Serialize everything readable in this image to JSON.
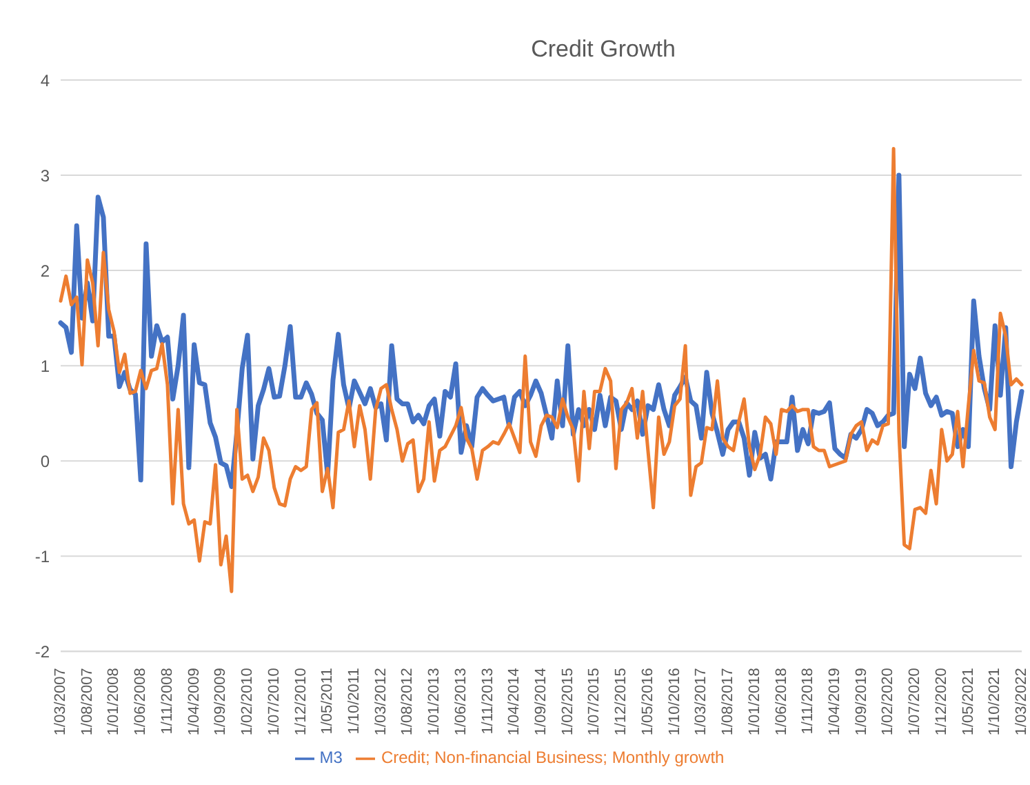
{
  "chart_data": {
    "type": "line",
    "title": "Credit Growth",
    "categories": [
      "1/03/2007",
      null,
      null,
      null,
      null,
      "1/08/2007",
      null,
      null,
      null,
      null,
      "1/01/2008",
      null,
      null,
      null,
      null,
      "1/06/2008",
      null,
      null,
      null,
      null,
      "1/11/2008",
      null,
      null,
      null,
      null,
      "1/04/2009",
      null,
      null,
      null,
      null,
      "1/09/2009",
      null,
      null,
      null,
      null,
      "1/02/2010",
      null,
      null,
      null,
      null,
      "1/07/2010",
      null,
      null,
      null,
      null,
      "1/12/2010",
      null,
      null,
      null,
      null,
      "1/05/2011",
      null,
      null,
      null,
      null,
      "1/10/2011",
      null,
      null,
      null,
      null,
      "1/03/2012",
      null,
      null,
      null,
      null,
      "1/08/2012",
      null,
      null,
      null,
      null,
      "1/01/2013",
      null,
      null,
      null,
      null,
      "1/06/2013",
      null,
      null,
      null,
      null,
      "1/11/2013",
      null,
      null,
      null,
      null,
      "1/04/2014",
      null,
      null,
      null,
      null,
      "1/09/2014",
      null,
      null,
      null,
      null,
      "1/02/2015",
      null,
      null,
      null,
      null,
      "1/07/2015",
      null,
      null,
      null,
      null,
      "1/12/2015",
      null,
      null,
      null,
      null,
      "1/05/2016",
      null,
      null,
      null,
      null,
      "1/10/2016",
      null,
      null,
      null,
      null,
      "1/03/2017",
      null,
      null,
      null,
      null,
      "1/08/2017",
      null,
      null,
      null,
      null,
      "1/01/2018",
      null,
      null,
      null,
      null,
      "1/06/2018",
      null,
      null,
      null,
      null,
      "1/11/2018",
      null,
      null,
      null,
      null,
      "1/04/2019",
      null,
      null,
      null,
      null,
      "1/09/2019",
      null,
      null,
      null,
      null,
      "1/02/2020",
      null,
      null,
      null,
      null,
      "1/07/2020",
      null,
      null,
      null,
      null,
      "1/12/2020",
      null,
      null,
      null,
      null,
      "1/05/2021",
      null,
      null,
      null,
      null,
      "1/10/2021",
      null,
      null,
      null,
      null,
      "1/03/2022"
    ],
    "series": [
      {
        "name": "M3",
        "color": "#4472c4",
        "values": [
          1.45,
          1.4,
          1.14,
          2.47,
          1.5,
          1.87,
          1.47,
          2.77,
          2.56,
          1.31,
          1.31,
          0.78,
          0.93,
          0.75,
          0.7,
          -0.2,
          2.28,
          1.1,
          1.42,
          1.25,
          1.3,
          0.65,
          1.0,
          1.53,
          -0.07,
          1.22,
          0.82,
          0.8,
          0.4,
          0.25,
          -0.02,
          -0.05,
          -0.27,
          0.3,
          0.97,
          1.32,
          0.02,
          0.58,
          0.75,
          0.97,
          0.67,
          0.68,
          1.0,
          1.41,
          0.67,
          0.67,
          0.82,
          0.7,
          0.5,
          0.43,
          -0.15,
          0.85,
          1.33,
          0.8,
          0.55,
          0.84,
          0.72,
          0.6,
          0.76,
          0.56,
          0.6,
          0.22,
          1.21,
          0.65,
          0.6,
          0.6,
          0.41,
          0.48,
          0.39,
          0.58,
          0.65,
          0.26,
          0.73,
          0.67,
          1.02,
          0.09,
          0.37,
          0.15,
          0.67,
          0.76,
          0.69,
          0.63,
          0.65,
          0.67,
          0.37,
          0.67,
          0.73,
          0.58,
          0.69,
          0.84,
          0.71,
          0.48,
          0.24,
          0.84,
          0.37,
          1.21,
          0.28,
          0.54,
          0.37,
          0.54,
          0.33,
          0.69,
          0.37,
          0.67,
          0.63,
          0.33,
          0.61,
          0.54,
          0.63,
          0.28,
          0.58,
          0.54,
          0.8,
          0.54,
          0.37,
          0.69,
          0.78,
          0.88,
          0.63,
          0.58,
          0.24,
          0.93,
          0.5,
          0.3,
          0.07,
          0.33,
          0.41,
          0.41,
          0.24,
          -0.15,
          0.3,
          0.03,
          0.07,
          -0.19,
          0.2,
          0.2,
          0.2,
          0.67,
          0.11,
          0.33,
          0.18,
          0.52,
          0.5,
          0.52,
          0.61,
          0.13,
          0.07,
          0.03,
          0.28,
          0.24,
          0.33,
          0.54,
          0.5,
          0.37,
          0.41,
          0.48,
          0.5,
          3.0,
          0.15,
          0.91,
          0.76,
          1.08,
          0.71,
          0.58,
          0.67,
          0.48,
          0.52,
          0.5,
          0.15,
          0.33,
          0.15,
          1.68,
          1.1,
          0.76,
          0.54,
          1.42,
          0.69,
          1.4,
          -0.06,
          0.41,
          0.73
        ]
      },
      {
        "name": "Credit; Non-financial Business; Monthly growth",
        "color": "#ed7d31",
        "values": [
          1.68,
          1.94,
          1.64,
          1.72,
          1.01,
          2.11,
          1.87,
          1.21,
          2.19,
          1.59,
          1.36,
          0.93,
          1.12,
          0.71,
          0.73,
          0.95,
          0.76,
          0.95,
          0.97,
          1.23,
          0.8,
          -0.45,
          0.54,
          -0.45,
          -0.66,
          -0.62,
          -1.05,
          -0.64,
          -0.66,
          -0.04,
          -1.09,
          -0.79,
          -1.37,
          0.54,
          -0.19,
          -0.15,
          -0.32,
          -0.17,
          0.24,
          0.11,
          -0.28,
          -0.45,
          -0.47,
          -0.19,
          -0.06,
          -0.1,
          -0.06,
          0.54,
          0.61,
          -0.32,
          -0.08,
          -0.49,
          0.3,
          0.33,
          0.63,
          0.15,
          0.58,
          0.33,
          -0.19,
          0.54,
          0.76,
          0.8,
          0.54,
          0.33,
          0.0,
          0.18,
          0.22,
          -0.32,
          -0.19,
          0.41,
          -0.21,
          0.11,
          0.15,
          0.26,
          0.37,
          0.56,
          0.24,
          0.13,
          -0.19,
          0.11,
          0.15,
          0.2,
          0.18,
          0.28,
          0.39,
          0.24,
          0.09,
          1.1,
          0.2,
          0.05,
          0.37,
          0.48,
          0.46,
          0.35,
          0.65,
          0.46,
          0.33,
          -0.21,
          0.73,
          0.13,
          0.73,
          0.73,
          0.97,
          0.84,
          -0.08,
          0.54,
          0.61,
          0.76,
          0.24,
          0.73,
          0.11,
          -0.49,
          0.46,
          0.07,
          0.2,
          0.58,
          0.65,
          1.21,
          -0.36,
          -0.06,
          -0.02,
          0.35,
          0.33,
          0.84,
          0.24,
          0.15,
          0.11,
          0.41,
          0.65,
          0.15,
          -0.09,
          0.07,
          0.46,
          0.39,
          0.07,
          0.54,
          0.52,
          0.58,
          0.52,
          0.54,
          0.54,
          0.15,
          0.11,
          0.11,
          -0.06,
          -0.04,
          -0.02,
          0.0,
          0.28,
          0.37,
          0.41,
          0.11,
          0.22,
          0.18,
          0.37,
          0.39,
          3.28,
          0.3,
          -0.88,
          -0.92,
          -0.51,
          -0.49,
          -0.55,
          -0.1,
          -0.45,
          0.33,
          0.0,
          0.07,
          0.52,
          -0.06,
          0.58,
          1.16,
          0.84,
          0.82,
          0.46,
          0.33,
          1.55,
          1.31,
          0.8,
          0.86,
          0.8
        ]
      }
    ],
    "ylim": [
      -2,
      4
    ],
    "yticks": [
      -2,
      -1,
      0,
      1,
      2,
      3,
      4
    ],
    "grid": "y",
    "legend": "bottom",
    "line_style": "solid"
  }
}
